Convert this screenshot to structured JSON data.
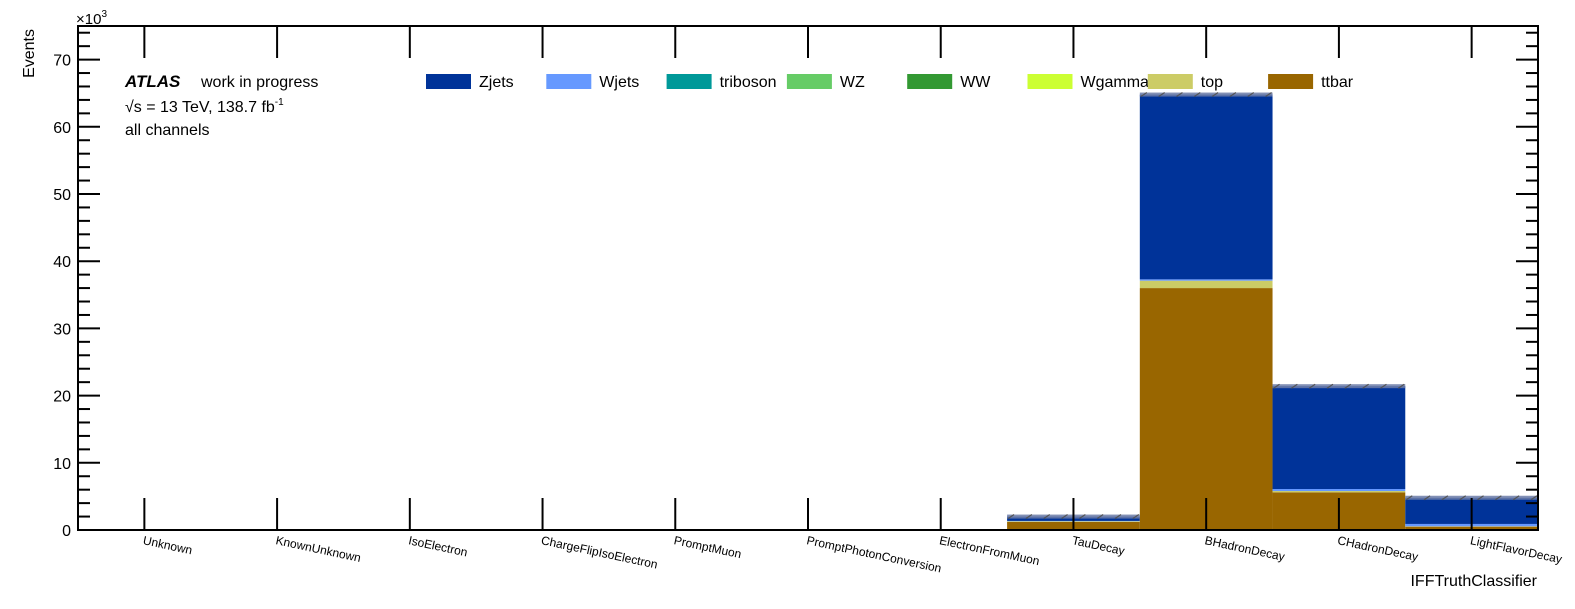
{
  "chart_data": {
    "type": "bar",
    "stacked": true,
    "ylabel": "Events",
    "xlabel": "IFFTruthClassifier",
    "y_multiplier": "×10",
    "y_multiplier_exp": "3",
    "ylim": [
      0,
      75
    ],
    "yticks": [
      "0",
      "10",
      "20",
      "30",
      "40",
      "50",
      "60",
      "70"
    ],
    "categories": [
      "Unknown",
      "KnownUnknown",
      "IsoElectron",
      "ChargeFlipIsoElectron",
      "PromptMuon",
      "PromptPhotonConversion",
      "ElectronFromMuon",
      "TauDecay",
      "BHadronDecay",
      "CHadronDecay",
      "LightFlavorDecay"
    ],
    "series": [
      {
        "name": "ttbar",
        "color": "#996600",
        "values": [
          0,
          0,
          0,
          0,
          0,
          0,
          0,
          1.2,
          36.0,
          5.6,
          0.5
        ]
      },
      {
        "name": "top",
        "color": "#cccc66",
        "values": [
          0,
          0,
          0,
          0,
          0,
          0,
          0,
          0.1,
          1.1,
          0.2,
          0.05
        ]
      },
      {
        "name": "Wgamma",
        "color": "#ccff33",
        "values": [
          0,
          0,
          0,
          0,
          0,
          0,
          0,
          0,
          0,
          0,
          0
        ]
      },
      {
        "name": "WW",
        "color": "#339933",
        "values": [
          0,
          0,
          0,
          0,
          0,
          0,
          0,
          0,
          0,
          0,
          0
        ]
      },
      {
        "name": "WZ",
        "color": "#66cc66",
        "values": [
          0,
          0,
          0,
          0,
          0,
          0,
          0,
          0,
          0,
          0,
          0
        ]
      },
      {
        "name": "triboson",
        "color": "#009999",
        "values": [
          0,
          0,
          0,
          0,
          0,
          0,
          0,
          0,
          0,
          0,
          0
        ]
      },
      {
        "name": "Wjets",
        "color": "#6699ff",
        "values": [
          0,
          0,
          0,
          0,
          0,
          0,
          0,
          0.05,
          0.2,
          0.3,
          0.35
        ]
      },
      {
        "name": "Zjets",
        "color": "#003399",
        "values": [
          0,
          0,
          0,
          0,
          0,
          0,
          0,
          0.65,
          27.5,
          15.3,
          3.9
        ]
      }
    ],
    "legend_order": [
      "Zjets",
      "Wjets",
      "triboson",
      "WZ",
      "WW",
      "Wgamma",
      "top",
      "ttbar"
    ],
    "legend_position": "top",
    "grid": false
  },
  "annotations": {
    "atlas": "ATLAS",
    "label": "work in progress",
    "energy_prefix": "√s = 13 TeV, 138.7 fb",
    "energy_exp": "-1",
    "channels": "all channels"
  }
}
